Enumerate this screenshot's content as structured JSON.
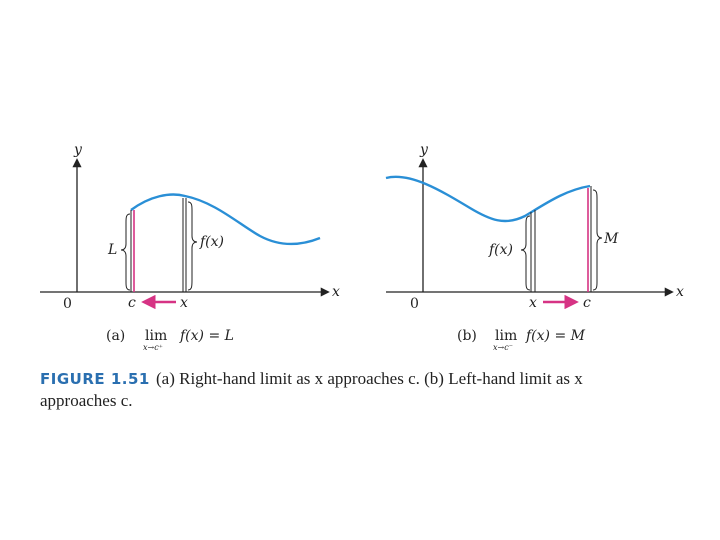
{
  "panel_a": {
    "y_label": "y",
    "x_label": "x",
    "origin_label": "0",
    "c_label": "c",
    "x_point_label": "x",
    "fx_label": "f(x)",
    "L_label": "L",
    "caption_letter": "(a)",
    "lim_word": "lim",
    "lim_sub": "x→c⁺",
    "lim_expr": "f(x) = L"
  },
  "panel_b": {
    "y_label": "y",
    "x_label": "x",
    "origin_label": "0",
    "c_label": "c",
    "x_point_label": "x",
    "fx_label": "f(x)",
    "M_label": "M",
    "caption_letter": "(b)",
    "lim_word": "lim",
    "lim_sub": "x→c⁻",
    "lim_expr": "f(x) = M"
  },
  "caption": {
    "figure_label": "FIGURE 1.51",
    "line1": "(a) Right-hand limit as x approaches c. (b) Left-hand limit as x",
    "line2": "approaches c."
  },
  "colors": {
    "curve": "#2a8fd6",
    "arrow": "#d63384",
    "limit_line": "#d63384",
    "axis": "#222222",
    "figure_label": "#2a6fb0"
  }
}
